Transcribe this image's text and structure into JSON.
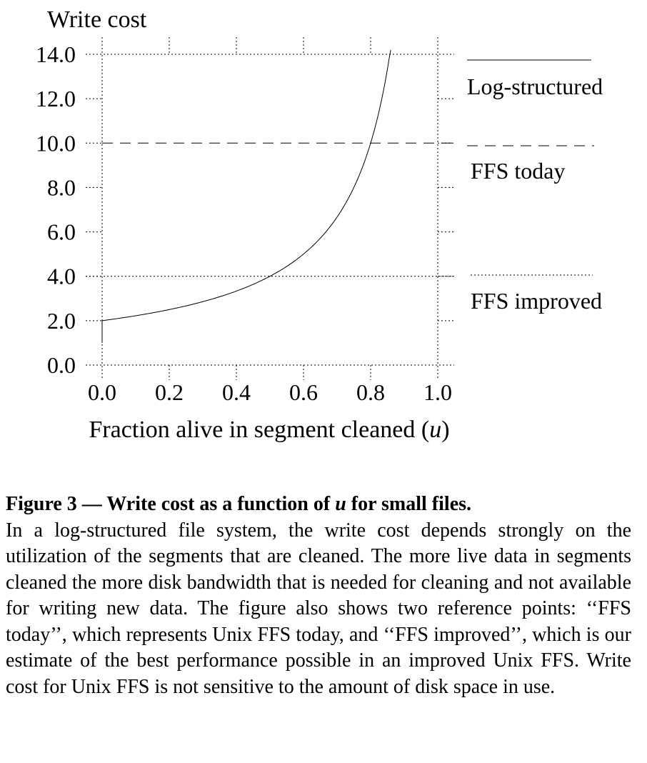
{
  "chart_data": {
    "type": "line",
    "ylabel": "Write cost",
    "xlabel_parts": [
      "Fraction alive in segment cleaned (",
      "u",
      ")"
    ],
    "x_ticks": [
      "0.0",
      "0.2",
      "0.4",
      "0.6",
      "0.8",
      "1.0"
    ],
    "y_ticks": [
      "0.0",
      "2.0",
      "4.0",
      "6.0",
      "8.0",
      "10.0",
      "12.0",
      "14.0"
    ],
    "xlim": [
      0,
      1
    ],
    "ylim": [
      0,
      14
    ],
    "grid": "dotted",
    "legend_placement": "right",
    "series": [
      {
        "name": "Log-structured",
        "style": "solid",
        "formula": "2/(1-u)",
        "x_range": [
          0,
          0.86
        ]
      },
      {
        "name": "FFS today",
        "style": "dashed",
        "constant": 10
      },
      {
        "name": "FFS improved",
        "style": "dotted",
        "constant": 4
      }
    ]
  },
  "caption": {
    "title_before": "Figure 3 — Write cost as a function of ",
    "title_var": "u",
    "title_after": " for small files.",
    "body": "In a log-structured file system, the write cost depends strongly on the utilization of the segments that are cleaned. The more live data in segments cleaned the more disk bandwidth that is needed for cleaning and not available for writing new data. The figure also shows two reference points: ‘‘FFS today’’, which represents Unix FFS today, and ‘‘FFS improved’’, which is our estimate of the best performance possible in an improved Unix FFS. Write cost for Unix FFS is not sensitive to the amount of disk space in use."
  }
}
